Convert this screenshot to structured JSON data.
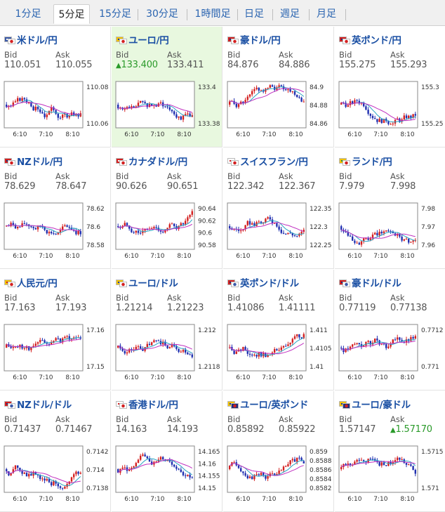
{
  "tabs": [
    "1分足",
    "5分足",
    "15分足",
    "30分足",
    "1時間足",
    "日足",
    "週足",
    "月足"
  ],
  "active_tab": 1,
  "bid_label": "Bid",
  "ask_label": "Ask",
  "pairs": [
    {
      "name": "米ドル/円",
      "bid": "110.051",
      "ask": "110.055",
      "flags": [
        "#ffffff",
        "#ffffff"
      ],
      "flagdots": [
        "#3b5aa8",
        "#d32020"
      ],
      "yticks": [
        "110.08",
        "110.06"
      ],
      "xticks": [
        "6:10",
        "7:10",
        "8:10"
      ],
      "bid_dir": "",
      "ask_dir": "",
      "highlight": false
    },
    {
      "name": "ユーロ/円",
      "bid": "133.400",
      "ask": "133.411",
      "flags": [
        "#1f3f9a",
        "#ffffff"
      ],
      "flagdots": [
        "#f2c200",
        "#d32020"
      ],
      "yticks": [
        "133.4",
        "133.38"
      ],
      "xticks": [
        "6:10",
        "7:10",
        "8:10"
      ],
      "bid_dir": "up",
      "ask_dir": "",
      "highlight": true
    },
    {
      "name": "豪ドル/円",
      "bid": "84.876",
      "ask": "84.886",
      "flags": [
        "#1f2f7a",
        "#ffffff"
      ],
      "flagdots": [
        "#d32020",
        "#d32020"
      ],
      "yticks": [
        "84.9",
        "84.88",
        "84.86"
      ],
      "xticks": [
        "6:10",
        "7:10",
        "8:10"
      ],
      "bid_dir": "",
      "ask_dir": "",
      "highlight": false
    },
    {
      "name": "英ポンド/円",
      "bid": "155.275",
      "ask": "155.293",
      "flags": [
        "#1f2f7a",
        "#ffffff"
      ],
      "flagdots": [
        "#d32020",
        "#d32020"
      ],
      "yticks": [
        "155.3",
        "155.25"
      ],
      "xticks": [
        "6:10",
        "7:10",
        "8:10"
      ],
      "bid_dir": "",
      "ask_dir": "",
      "highlight": false
    },
    {
      "name": "NZドル/円",
      "bid": "78.629",
      "ask": "78.647",
      "flags": [
        "#1f2f7a",
        "#ffffff"
      ],
      "flagdots": [
        "#d32020",
        "#d32020"
      ],
      "yticks": [
        "78.62",
        "78.6",
        "78.58"
      ],
      "xticks": [
        "6:10",
        "7:10",
        "8:10"
      ],
      "bid_dir": "",
      "ask_dir": "",
      "highlight": false
    },
    {
      "name": "カナダドル/円",
      "bid": "90.626",
      "ask": "90.651",
      "flags": [
        "#ffffff",
        "#ffffff"
      ],
      "flagdots": [
        "#d32020",
        "#d32020"
      ],
      "yticks": [
        "90.64",
        "90.62",
        "90.6",
        "90.58"
      ],
      "xticks": [
        "6:10",
        "7:10",
        "8:10"
      ],
      "bid_dir": "",
      "ask_dir": "",
      "highlight": false
    },
    {
      "name": "スイスフラン/円",
      "bid": "122.342",
      "ask": "122.367",
      "flags": [
        "#d32020",
        "#ffffff"
      ],
      "flagdots": [
        "#ffffff",
        "#d32020"
      ],
      "yticks": [
        "122.35",
        "122.3",
        "122.25"
      ],
      "xticks": [
        "6:10",
        "7:10",
        "8:10"
      ],
      "bid_dir": "",
      "ask_dir": "",
      "highlight": false
    },
    {
      "name": "ランド/円",
      "bid": "7.979",
      "ask": "7.998",
      "flags": [
        "#2a8a3a",
        "#ffffff"
      ],
      "flagdots": [
        "#f2c200",
        "#d32020"
      ],
      "yticks": [
        "7.98",
        "7.97",
        "7.96"
      ],
      "xticks": [
        "6:10",
        "7:10",
        "8:10"
      ],
      "bid_dir": "",
      "ask_dir": "",
      "highlight": false
    },
    {
      "name": "人民元/円",
      "bid": "17.163",
      "ask": "17.193",
      "flags": [
        "#d32020",
        "#ffffff"
      ],
      "flagdots": [
        "#f2c200",
        "#d32020"
      ],
      "yticks": [
        "17.16",
        "17.15"
      ],
      "xticks": [
        "6:10",
        "7:10",
        "8:10"
      ],
      "bid_dir": "",
      "ask_dir": "",
      "highlight": false
    },
    {
      "name": "ユーロ/ドル",
      "bid": "1.21214",
      "ask": "1.21223",
      "flags": [
        "#1f3f9a",
        "#ffffff"
      ],
      "flagdots": [
        "#f2c200",
        "#d32020"
      ],
      "yticks": [
        "1.212",
        "1.2118"
      ],
      "xticks": [
        "6:10",
        "7:10",
        "8:10"
      ],
      "bid_dir": "",
      "ask_dir": "",
      "highlight": false
    },
    {
      "name": "英ポンド/ドル",
      "bid": "1.41086",
      "ask": "1.41111",
      "flags": [
        "#1f2f7a",
        "#ffffff"
      ],
      "flagdots": [
        "#d32020",
        "#3b5aa8"
      ],
      "yticks": [
        "1.411",
        "1.4105",
        "1.41"
      ],
      "xticks": [
        "6:10",
        "7:10",
        "8:10"
      ],
      "bid_dir": "",
      "ask_dir": "",
      "highlight": false
    },
    {
      "name": "豪ドル/ドル",
      "bid": "0.77119",
      "ask": "0.77138",
      "flags": [
        "#1f2f7a",
        "#ffffff"
      ],
      "flagdots": [
        "#d32020",
        "#3b5aa8"
      ],
      "yticks": [
        "0.7712",
        "0.771"
      ],
      "xticks": [
        "6:10",
        "7:10",
        "8:10"
      ],
      "bid_dir": "",
      "ask_dir": "",
      "highlight": false
    },
    {
      "name": "NZドル/ドル",
      "bid": "0.71437",
      "ask": "0.71467",
      "flags": [
        "#1f2f7a",
        "#ffffff"
      ],
      "flagdots": [
        "#d32020",
        "#3b5aa8"
      ],
      "yticks": [
        "0.7142",
        "0.714",
        "0.7138"
      ],
      "xticks": [
        "6:10",
        "7:10",
        "8:10"
      ],
      "bid_dir": "",
      "ask_dir": "",
      "highlight": false
    },
    {
      "name": "香港ドル/円",
      "bid": "14.163",
      "ask": "14.193",
      "flags": [
        "#d32020",
        "#ffffff"
      ],
      "flagdots": [
        "#ffffff",
        "#d32020"
      ],
      "yticks": [
        "14.165",
        "14.16",
        "14.155",
        "14.15"
      ],
      "xticks": [
        "6:10",
        "7:10",
        "8:10"
      ],
      "bid_dir": "",
      "ask_dir": "",
      "highlight": false
    },
    {
      "name": "ユーロ/英ポンド",
      "bid": "0.85892",
      "ask": "0.85922",
      "flags": [
        "#1f3f9a",
        "#1f2f7a"
      ],
      "flagdots": [
        "#f2c200",
        "#d32020"
      ],
      "yticks": [
        "0.859",
        "0.8588",
        "0.8586",
        "0.8584",
        "0.8582"
      ],
      "xticks": [
        "6:10",
        "7:10",
        "8:10"
      ],
      "bid_dir": "",
      "ask_dir": "",
      "highlight": false
    },
    {
      "name": "ユーロ/豪ドル",
      "bid": "1.57147",
      "ask": "1.57170",
      "flags": [
        "#1f3f9a",
        "#1f2f7a"
      ],
      "flagdots": [
        "#f2c200",
        "#d32020"
      ],
      "yticks": [
        "1.5715",
        "1.571"
      ],
      "xticks": [
        "6:10",
        "7:10",
        "8:10"
      ],
      "bid_dir": "",
      "ask_dir": "up",
      "highlight": false
    }
  ],
  "up_arrow": "▲"
}
